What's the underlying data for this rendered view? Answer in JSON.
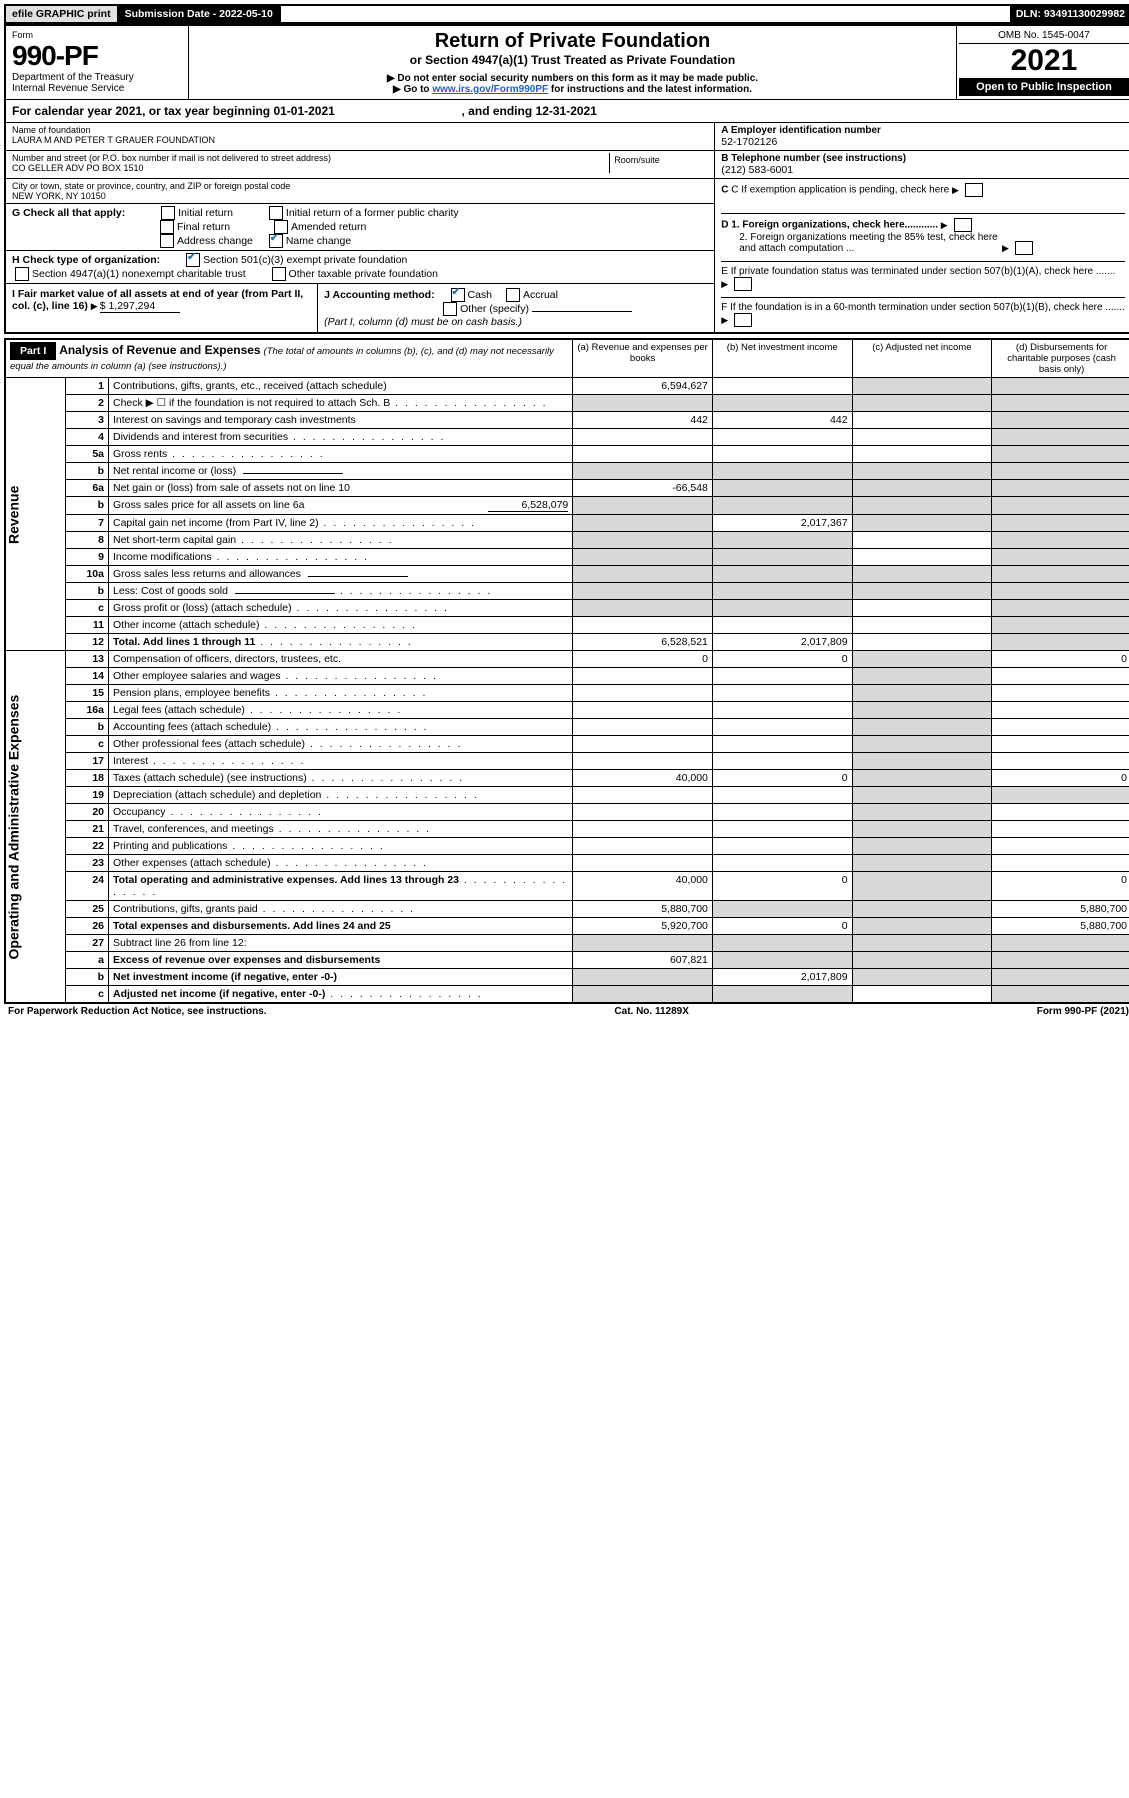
{
  "topbar": {
    "efile": "efile GRAPHIC print",
    "subdate": "Submission Date - 2022-05-10",
    "dln": "DLN: 93491130029982"
  },
  "header": {
    "form_label": "Form",
    "form_no": "990-PF",
    "dept": "Department of the Treasury",
    "irs": "Internal Revenue Service",
    "title": "Return of Private Foundation",
    "sub1": "or Section 4947(a)(1) Trust Treated as Private Foundation",
    "sub2": "▶ Do not enter social security numbers on this form as it may be made public.",
    "sub3_pre": "▶ Go to ",
    "sub3_link": "www.irs.gov/Form990PF",
    "sub3_post": " for instructions and the latest information.",
    "omb": "OMB No. 1545-0047",
    "year": "2021",
    "open": "Open to Public Inspection"
  },
  "calyear": {
    "text1": "For calendar year 2021, or tax year beginning 01-01-2021",
    "text2": ", and ending 12-31-2021"
  },
  "name_block": {
    "name_label": "Name of foundation",
    "name_val": "LAURA M AND PETER T GRAUER FOUNDATION",
    "addr_label": "Number and street (or P.O. box number if mail is not delivered to street address)",
    "addr_val": "CO GELLER ADV PO BOX 1510",
    "room_label": "Room/suite",
    "city_label": "City or town, state or province, country, and ZIP or foreign postal code",
    "city_val": "NEW YORK, NY  10150"
  },
  "right_id": {
    "a_label": "A Employer identification number",
    "a_val": "52-1702126",
    "b_label": "B Telephone number (see instructions)",
    "b_val": "(212) 583-6001",
    "c_label": "C If exemption application is pending, check here",
    "d1": "D 1. Foreign organizations, check here............",
    "d2": "2. Foreign organizations meeting the 85% test, check here and attach computation ...",
    "e": "E  If private foundation status was terminated under section 507(b)(1)(A), check here .......",
    "f": "F  If the foundation is in a 60-month termination under section 507(b)(1)(B), check here ......."
  },
  "g_block": {
    "label": "G Check all that apply:",
    "o1": "Initial return",
    "o2": "Final return",
    "o3": "Address change",
    "o4": "Initial return of a former public charity",
    "o5": "Amended return",
    "o6": "Name change"
  },
  "h_block": {
    "label": "H Check type of organization:",
    "o1": "Section 501(c)(3) exempt private foundation",
    "o2": "Section 4947(a)(1) nonexempt charitable trust",
    "o3": "Other taxable private foundation"
  },
  "i_block": {
    "label": "I Fair market value of all assets at end of year (from Part II, col. (c), line 16)",
    "val": "$  1,297,294"
  },
  "j_block": {
    "label": "J Accounting method:",
    "cash": "Cash",
    "accrual": "Accrual",
    "other": "Other (specify)",
    "note": "(Part I, column (d) must be on cash basis.)"
  },
  "part1_header": {
    "part": "Part I",
    "title": "Analysis of Revenue and Expenses",
    "note": "(The total of amounts in columns (b), (c), and (d) may not necessarily equal the amounts in column (a) (see instructions).)",
    "col_a": "(a)   Revenue and expenses per books",
    "col_b": "(b)   Net investment income",
    "col_c": "(c)   Adjusted net income",
    "col_d": "(d)   Disbursements for charitable purposes (cash basis only)"
  },
  "side_labels": {
    "revenue": "Revenue",
    "expenses": "Operating and Administrative Expenses"
  },
  "part1_rows": [
    {
      "n": "1",
      "d": "Contributions, gifts, grants, etc., received (attach schedule)",
      "a": "6,594,627",
      "b": "",
      "c": "shade",
      "e": "shade"
    },
    {
      "n": "2",
      "d": "Check ▶ ☐ if the foundation is not required to attach Sch. B",
      "dots": true,
      "a": "shade",
      "b": "shade",
      "c": "shade",
      "e": "shade"
    },
    {
      "n": "3",
      "d": "Interest on savings and temporary cash investments",
      "a": "442",
      "b": "442",
      "c": "",
      "e": "shade"
    },
    {
      "n": "4",
      "d": "Dividends and interest from securities",
      "dots": true,
      "a": "",
      "b": "",
      "c": "",
      "e": "shade"
    },
    {
      "n": "5a",
      "d": "Gross rents",
      "dots": true,
      "a": "",
      "b": "",
      "c": "",
      "e": "shade"
    },
    {
      "n": "b",
      "d": "Net rental income or (loss)",
      "inline": true,
      "a": "shade",
      "b": "shade",
      "c": "shade",
      "e": "shade"
    },
    {
      "n": "6a",
      "d": "Net gain or (loss) from sale of assets not on line 10",
      "a": "-66,548",
      "b": "shade",
      "c": "shade",
      "e": "shade"
    },
    {
      "n": "b",
      "d": "Gross sales price for all assets on line 6a",
      "inline_val": "6,528,079",
      "a": "shade",
      "b": "shade",
      "c": "shade",
      "e": "shade"
    },
    {
      "n": "7",
      "d": "Capital gain net income (from Part IV, line 2)",
      "dots": true,
      "a": "shade",
      "b": "2,017,367",
      "c": "shade",
      "e": "shade"
    },
    {
      "n": "8",
      "d": "Net short-term capital gain",
      "dots": true,
      "a": "shade",
      "b": "shade",
      "c": "",
      "e": "shade"
    },
    {
      "n": "9",
      "d": "Income modifications",
      "dots": true,
      "a": "shade",
      "b": "shade",
      "c": "",
      "e": "shade"
    },
    {
      "n": "10a",
      "d": "Gross sales less returns and allowances",
      "inline": true,
      "a": "shade",
      "b": "shade",
      "c": "shade",
      "e": "shade"
    },
    {
      "n": "b",
      "d": "Less: Cost of goods sold",
      "dots": true,
      "inline": true,
      "a": "shade",
      "b": "shade",
      "c": "shade",
      "e": "shade"
    },
    {
      "n": "c",
      "d": "Gross profit or (loss) (attach schedule)",
      "dots": true,
      "a": "shade",
      "b": "shade",
      "c": "",
      "e": "shade"
    },
    {
      "n": "11",
      "d": "Other income (attach schedule)",
      "dots": true,
      "a": "",
      "b": "",
      "c": "",
      "e": "shade"
    },
    {
      "n": "12",
      "d": "Total. Add lines 1 through 11",
      "dots": true,
      "bold": true,
      "a": "6,528,521",
      "b": "2,017,809",
      "c": "",
      "e": "shade"
    }
  ],
  "part1_exp_rows": [
    {
      "n": "13",
      "d": "Compensation of officers, directors, trustees, etc.",
      "a": "0",
      "b": "0",
      "c": "shade",
      "e": "0"
    },
    {
      "n": "14",
      "d": "Other employee salaries and wages",
      "dots": true,
      "a": "",
      "b": "",
      "c": "shade",
      "e": ""
    },
    {
      "n": "15",
      "d": "Pension plans, employee benefits",
      "dots": true,
      "a": "",
      "b": "",
      "c": "shade",
      "e": ""
    },
    {
      "n": "16a",
      "d": "Legal fees (attach schedule)",
      "dots": true,
      "a": "",
      "b": "",
      "c": "shade",
      "e": ""
    },
    {
      "n": "b",
      "d": "Accounting fees (attach schedule)",
      "dots": true,
      "a": "",
      "b": "",
      "c": "shade",
      "e": ""
    },
    {
      "n": "c",
      "d": "Other professional fees (attach schedule)",
      "dots": true,
      "a": "",
      "b": "",
      "c": "shade",
      "e": ""
    },
    {
      "n": "17",
      "d": "Interest",
      "dots": true,
      "a": "",
      "b": "",
      "c": "shade",
      "e": ""
    },
    {
      "n": "18",
      "d": "Taxes (attach schedule) (see instructions)",
      "dots": true,
      "a": "40,000",
      "b": "0",
      "c": "shade",
      "e": "0"
    },
    {
      "n": "19",
      "d": "Depreciation (attach schedule) and depletion",
      "dots": true,
      "a": "",
      "b": "",
      "c": "shade",
      "e": "shade"
    },
    {
      "n": "20",
      "d": "Occupancy",
      "dots": true,
      "a": "",
      "b": "",
      "c": "shade",
      "e": ""
    },
    {
      "n": "21",
      "d": "Travel, conferences, and meetings",
      "dots": true,
      "a": "",
      "b": "",
      "c": "shade",
      "e": ""
    },
    {
      "n": "22",
      "d": "Printing and publications",
      "dots": true,
      "a": "",
      "b": "",
      "c": "shade",
      "e": ""
    },
    {
      "n": "23",
      "d": "Other expenses (attach schedule)",
      "dots": true,
      "a": "",
      "b": "",
      "c": "shade",
      "e": ""
    },
    {
      "n": "24",
      "d": "Total operating and administrative expenses. Add lines 13 through 23",
      "dots": true,
      "bold": true,
      "a": "40,000",
      "b": "0",
      "c": "shade",
      "e": "0"
    },
    {
      "n": "25",
      "d": "Contributions, gifts, grants paid",
      "dots": true,
      "a": "5,880,700",
      "b": "shade",
      "c": "shade",
      "e": "5,880,700"
    },
    {
      "n": "26",
      "d": "Total expenses and disbursements. Add lines 24 and 25",
      "bold": true,
      "a": "5,920,700",
      "b": "0",
      "c": "shade",
      "e": "5,880,700"
    },
    {
      "n": "27",
      "d": "Subtract line 26 from line 12:",
      "a": "shade",
      "b": "shade",
      "c": "shade",
      "e": "shade"
    },
    {
      "n": "a",
      "d": "Excess of revenue over expenses and disbursements",
      "bold": true,
      "a": "607,821",
      "b": "shade",
      "c": "shade",
      "e": "shade"
    },
    {
      "n": "b",
      "d": "Net investment income (if negative, enter -0-)",
      "bold": true,
      "a": "shade",
      "b": "2,017,809",
      "c": "shade",
      "e": "shade"
    },
    {
      "n": "c",
      "d": "Adjusted net income (if negative, enter -0-)",
      "dots": true,
      "bold": true,
      "a": "shade",
      "b": "shade",
      "c": "",
      "e": "shade"
    }
  ],
  "footer": {
    "left": "For Paperwork Reduction Act Notice, see instructions.",
    "mid": "Cat. No. 11289X",
    "right": "Form 990-PF (2021)"
  }
}
